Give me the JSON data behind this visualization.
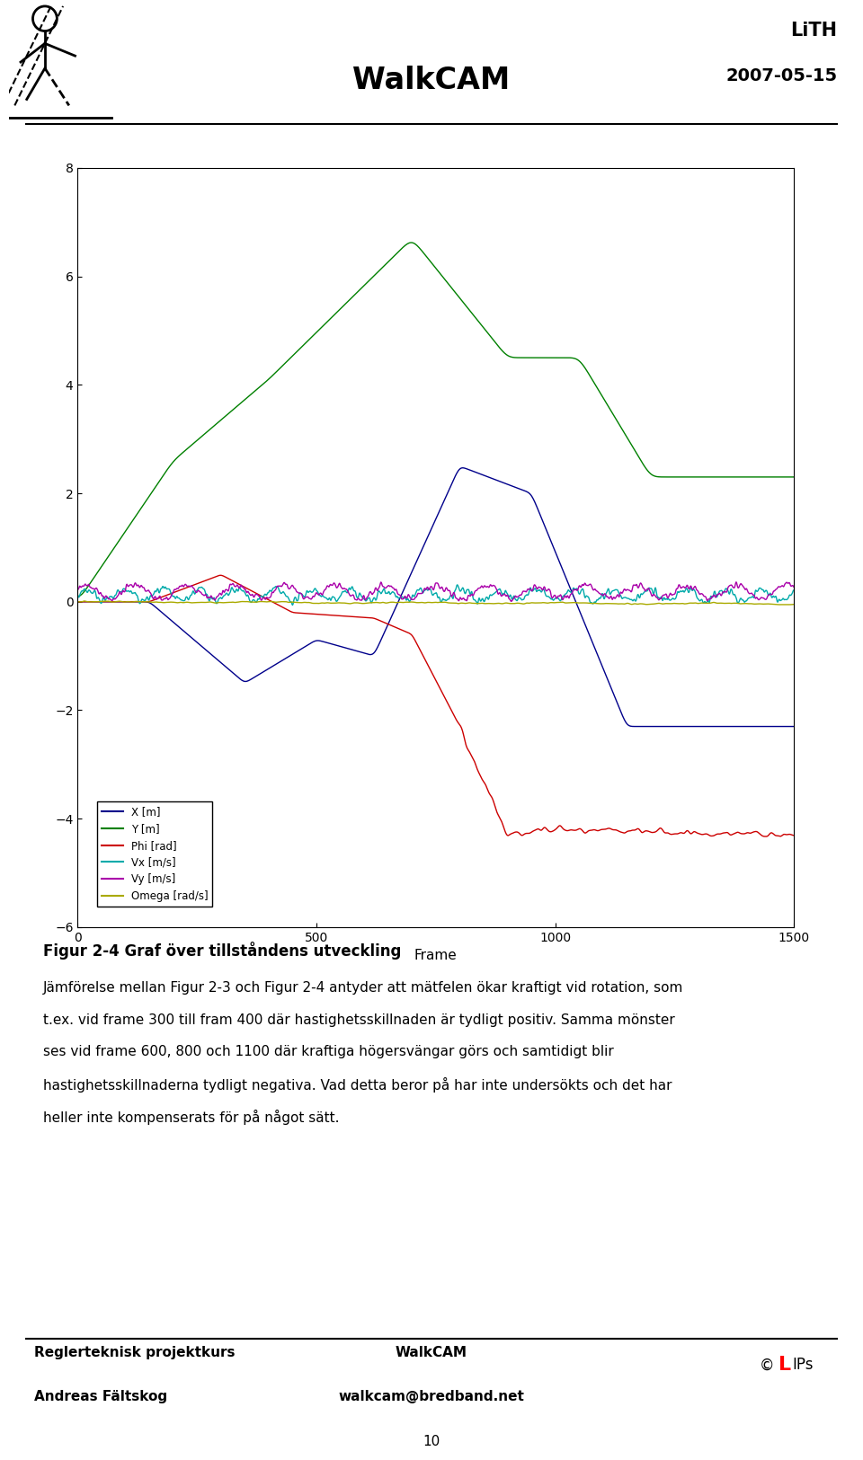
{
  "title_walkcam": "WalkCAM",
  "title_lith": "LiTH",
  "title_date": "2007-05-15",
  "xlabel": "Frame",
  "xlim": [
    0,
    1500
  ],
  "ylim": [
    -6,
    8
  ],
  "yticks": [
    -6,
    -4,
    -2,
    0,
    2,
    4,
    6,
    8
  ],
  "xticks": [
    0,
    500,
    1000,
    1500
  ],
  "legend_labels": [
    "X [m]",
    "Y [m]",
    "Phi [rad]",
    "Vx [m/s]",
    "Vy [m/s]",
    "Omega [rad/s]"
  ],
  "legend_colors": [
    "#00008B",
    "#008000",
    "#CC0000",
    "#00AAAA",
    "#AA00AA",
    "#AAAA00"
  ],
  "fig_caption_bold": "Figur 2-4 Graf över tillståndens utveckling",
  "body_line1": "Jämförelse mellan Figur 2-3 och Figur 2-4 antyder att mätfelen ökar kraftigt vid rotation, som",
  "body_line2": "t.ex. vid frame 300 till fram 400 där hastighetsskillnaden är tydligt positiv. Samma mönster",
  "body_line3": "ses vid frame 600, 800 och 1100 där kraftiga högersvängar görs och samtidigt blir",
  "body_line4": "hastighetsskillnaderna tydligt negativa. Vad detta beror på har inte undersökts och det har",
  "body_line5": "heller inte kompenserats för på något sätt.",
  "footer_left1": "Reglerteknisk projektkurs",
  "footer_left2": "Andreas Fältskog",
  "footer_center1": "WalkCAM",
  "footer_center2": "walkcam@bredband.net",
  "page_number": "10"
}
